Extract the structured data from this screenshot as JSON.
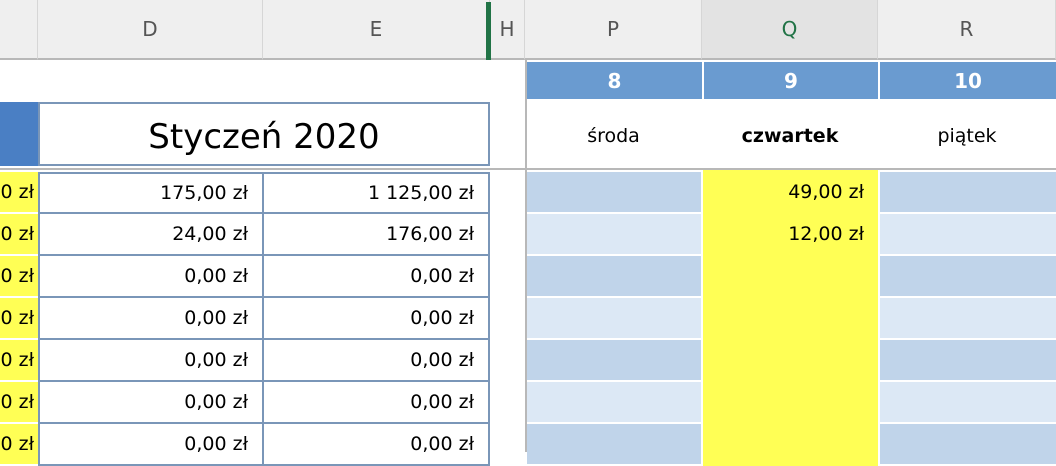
{
  "columns": [
    {
      "label": ""
    },
    {
      "label": "D"
    },
    {
      "label": "E"
    },
    {
      "label": "H"
    },
    {
      "label": "P"
    },
    {
      "label": "Q",
      "selected": true
    },
    {
      "label": "R"
    }
  ],
  "title": "Styczeń 2020",
  "days": [
    {
      "number": "8",
      "name": "środa"
    },
    {
      "number": "9",
      "name": "czwartek",
      "bold": true
    },
    {
      "number": "10",
      "name": "piątek"
    }
  ],
  "rows": [
    {
      "c": "0 zł",
      "d": "175,00 zł",
      "e": "1 125,00 zł",
      "p": "",
      "q": "49,00 zł",
      "r": ""
    },
    {
      "c": "0 zł",
      "d": "24,00 zł",
      "e": "176,00 zł",
      "p": "",
      "q": "12,00 zł",
      "r": ""
    },
    {
      "c": "0 zł",
      "d": "0,00 zł",
      "e": "0,00 zł",
      "p": "",
      "q": "",
      "r": ""
    },
    {
      "c": "0 zł",
      "d": "0,00 zł",
      "e": "0,00 zł",
      "p": "",
      "q": "",
      "r": ""
    },
    {
      "c": "0 zł",
      "d": "0,00 zł",
      "e": "0,00 zł",
      "p": "",
      "q": "",
      "r": ""
    },
    {
      "c": "0 zł",
      "d": "0,00 zł",
      "e": "0,00 zł",
      "p": "",
      "q": "",
      "r": ""
    },
    {
      "c": "0 zł",
      "d": "0,00 zł",
      "e": "0,00 zł",
      "p": "",
      "q": "",
      "r": ""
    }
  ],
  "colors": {
    "header_blue": "#6a9bd0",
    "highlight_yellow": "#ffff55",
    "row_blue_dark": "#c0d4ea",
    "row_blue_light": "#dce8f5",
    "selection_green": "#217346"
  }
}
